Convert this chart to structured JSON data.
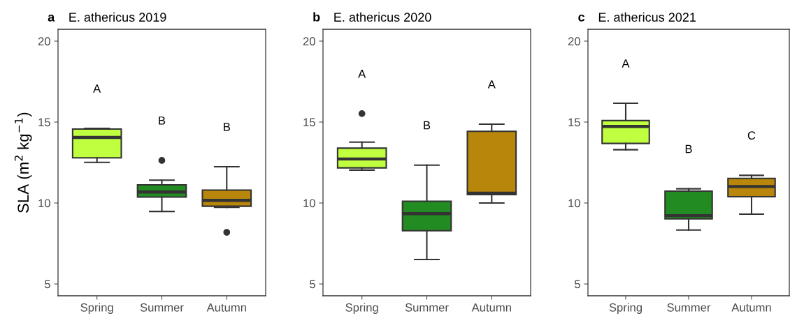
{
  "chart_data": [
    {
      "type": "box",
      "title": "E. athericus 2019",
      "ylabel": "SLA (m$^{2}$ kg$^{−1}$)",
      "categories": [
        "Spring",
        "Summer",
        "Autumn"
      ],
      "colors": [
        "#bfff3f",
        "#228b22",
        "#b8860b"
      ],
      "ylim": [
        4.27,
        20.73
      ],
      "yticks": [
        5,
        10,
        15,
        20
      ],
      "grid": false,
      "boxes": [
        {
          "low": 12.51,
          "q1": 12.79,
          "median": 14.05,
          "q3": 14.57,
          "high": 14.61
        },
        {
          "low": 9.48,
          "q1": 10.37,
          "median": 10.68,
          "q3": 11.12,
          "high": 11.41,
          "outliers": [
            12.63
          ]
        },
        {
          "low": 9.73,
          "q1": 9.8,
          "median": 10.16,
          "q3": 10.8,
          "high": 12.24,
          "outliers": [
            8.19
          ]
        }
      ],
      "annotations": [
        "a",
        "A",
        "B",
        "B"
      ]
    },
    {
      "type": "box",
      "title": "E. athericus 2020",
      "categories": [
        "Spring",
        "Summer",
        "Autumn"
      ],
      "colors": [
        "#bfff3f",
        "#228b22",
        "#b8860b"
      ],
      "ylim": [
        4.27,
        20.73
      ],
      "yticks": [
        5,
        10,
        15,
        20
      ],
      "grid": false,
      "boxes": [
        {
          "low": 12.03,
          "q1": 12.17,
          "median": 12.72,
          "q3": 13.39,
          "high": 13.76,
          "outliers": [
            15.52
          ]
        },
        {
          "low": 6.51,
          "q1": 8.29,
          "median": 9.34,
          "q3": 10.11,
          "high": 12.34
        },
        {
          "low": 10.0,
          "q1": 10.52,
          "median": 10.6,
          "q3": 14.43,
          "high": 14.87
        }
      ],
      "annotations": [
        "b",
        "A",
        "B",
        "A"
      ]
    },
    {
      "type": "box",
      "title": "E. athericus 2021",
      "categories": [
        "Spring",
        "Summer",
        "Autumn"
      ],
      "colors": [
        "#bfff3f",
        "#228b22",
        "#b8860b"
      ],
      "ylim": [
        4.27,
        20.73
      ],
      "yticks": [
        5,
        10,
        15,
        20
      ],
      "grid": false,
      "boxes": [
        {
          "low": 13.29,
          "q1": 13.68,
          "median": 14.73,
          "q3": 15.09,
          "high": 16.16
        },
        {
          "low": 8.33,
          "q1": 9.02,
          "median": 9.22,
          "q3": 10.73,
          "high": 10.88
        },
        {
          "low": 9.31,
          "q1": 10.39,
          "median": 11.02,
          "q3": 11.52,
          "high": 11.71
        }
      ],
      "annotations": [
        "c",
        "A",
        "B",
        "C"
      ]
    }
  ]
}
